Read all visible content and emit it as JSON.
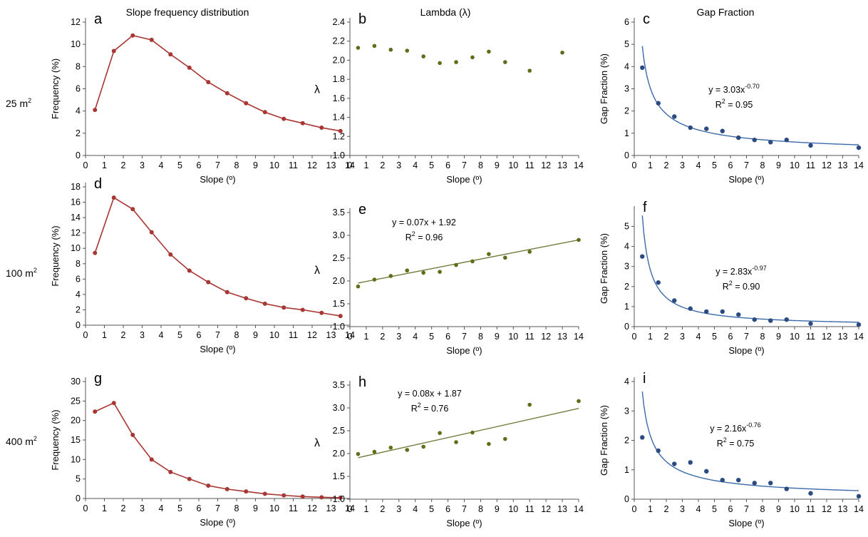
{
  "row_labels": [
    {
      "main": "25 m",
      "sup": "2"
    },
    {
      "main": "100 m",
      "sup": "2"
    },
    {
      "main": "400 m",
      "sup": "2"
    }
  ],
  "colors": {
    "frequency": "#a83632",
    "lambda_points": "#5c6e18",
    "lambda_fit": "#6e7d3c",
    "gap_points": "#2a4a80",
    "gap_fit": "#3c6aa8"
  },
  "chart_data": [
    {
      "letter": "a",
      "type": "line",
      "title": "Slope frequency distribution",
      "xlabel": "Slope (º)",
      "ylabel": "Frequency (%)",
      "xlim": [
        0,
        14
      ],
      "ylim": [
        0,
        12
      ],
      "xticks": [
        0,
        1,
        2,
        3,
        4,
        5,
        6,
        7,
        8,
        9,
        10,
        11,
        12,
        13,
        14
      ],
      "yticks": [
        0,
        2,
        4,
        6,
        8,
        10,
        12
      ],
      "series": [
        {
          "x": [
            0.5,
            1.5,
            2.5,
            3.5,
            4.5,
            5.5,
            6.5,
            7.5,
            8.5,
            9.5,
            10.5,
            11.5,
            12.5,
            13.5
          ],
          "y": [
            4.1,
            9.4,
            10.8,
            10.4,
            9.1,
            7.9,
            6.6,
            5.6,
            4.7,
            3.9,
            3.3,
            2.9,
            2.5,
            2.2
          ]
        }
      ]
    },
    {
      "letter": "b",
      "type": "scatter",
      "title": "Lambda (λ)",
      "xlabel": "Slope (º)",
      "ylabel": "λ",
      "xlim": [
        0,
        14
      ],
      "ylim": [
        1.0,
        2.4
      ],
      "xticks": [
        0,
        1,
        2,
        3,
        4,
        5,
        6,
        7,
        8,
        9,
        10,
        11,
        12,
        13,
        14
      ],
      "yticks": [
        "1.0",
        "1.2",
        "1.4",
        "1.6",
        "1.8",
        "2.0",
        "2.2",
        "2.4"
      ],
      "series": [
        {
          "x": [
            0.5,
            1.5,
            2.5,
            3.5,
            4.5,
            5.5,
            6.5,
            7.5,
            8.5,
            9.5,
            11,
            13
          ],
          "y": [
            2.13,
            2.15,
            2.11,
            2.1,
            2.04,
            1.97,
            1.98,
            2.03,
            2.09,
            1.98,
            1.89,
            2.08
          ]
        }
      ]
    },
    {
      "letter": "c",
      "type": "scatter",
      "title": "Gap Fraction",
      "xlabel": "Slope (º)",
      "ylabel": "Gap Fraction (%)",
      "xlim": [
        0,
        14
      ],
      "ylim": [
        0,
        6
      ],
      "xticks": [
        0,
        1,
        2,
        3,
        4,
        5,
        6,
        7,
        8,
        9,
        10,
        11,
        12,
        13,
        14
      ],
      "yticks": [
        0,
        1,
        2,
        3,
        4,
        5,
        6
      ],
      "series": [
        {
          "x": [
            0.5,
            1.5,
            2.5,
            3.5,
            4.5,
            5.5,
            6.5,
            7.5,
            8.5,
            9.5,
            11,
            14
          ],
          "y": [
            3.95,
            2.35,
            1.75,
            1.25,
            1.2,
            1.1,
            0.8,
            0.7,
            0.6,
            0.7,
            0.45,
            0.35
          ]
        }
      ],
      "fit": {
        "kind": "power",
        "a": 3.03,
        "b": -0.7
      },
      "equation": {
        "line1": "y = 3.03x",
        "sup": "-0.70",
        "line2_pre": "R",
        "line2_sup": "2",
        "line2_post": " = 0.95"
      }
    },
    {
      "letter": "d",
      "type": "line",
      "title": "",
      "xlabel": "Slope (º)",
      "ylabel": "Frequency (%)",
      "xlim": [
        0,
        14
      ],
      "ylim": [
        0,
        18
      ],
      "xticks": [
        0,
        1,
        2,
        3,
        4,
        5,
        6,
        7,
        8,
        9,
        10,
        11,
        12,
        13,
        14
      ],
      "yticks": [
        0,
        2,
        4,
        6,
        8,
        10,
        12,
        14,
        16,
        18
      ],
      "series": [
        {
          "x": [
            0.5,
            1.5,
            2.5,
            3.5,
            4.5,
            5.5,
            6.5,
            7.5,
            8.5,
            9.5,
            10.5,
            11.5,
            12.5,
            13.5
          ],
          "y": [
            9.4,
            16.6,
            15.1,
            12.1,
            9.2,
            7.1,
            5.6,
            4.3,
            3.5,
            2.8,
            2.3,
            2.0,
            1.6,
            1.2
          ]
        }
      ]
    },
    {
      "letter": "e",
      "type": "scatter",
      "title": "",
      "xlabel": "Slope (º)",
      "ylabel": "λ",
      "xlim": [
        0,
        14
      ],
      "ylim": [
        1.0,
        3.5
      ],
      "xticks": [
        0,
        1,
        2,
        3,
        4,
        5,
        6,
        7,
        8,
        9,
        10,
        11,
        12,
        13,
        14
      ],
      "yticks": [
        "1.0",
        "1.5",
        "2.0",
        "2.5",
        "3.0",
        "3.5"
      ],
      "series": [
        {
          "x": [
            0.5,
            1.5,
            2.5,
            3.5,
            4.5,
            5.5,
            6.5,
            7.5,
            8.5,
            9.5,
            11,
            14
          ],
          "y": [
            1.88,
            2.03,
            2.11,
            2.23,
            2.18,
            2.2,
            2.35,
            2.43,
            2.59,
            2.51,
            2.64,
            2.9
          ]
        }
      ],
      "fit": {
        "kind": "linear",
        "a": 0.07,
        "b": 1.92
      },
      "equation": {
        "line1": "y = 0.07x + 1.92",
        "sup": "",
        "line2_pre": "R",
        "line2_sup": "2",
        "line2_post": " = 0.96"
      }
    },
    {
      "letter": "f",
      "type": "scatter",
      "title": "",
      "xlabel": "Slope (º)",
      "ylabel": "Gap Fraction (%)",
      "xlim": [
        0,
        14
      ],
      "ylim": [
        0,
        5.8
      ],
      "xticks": [
        0,
        1,
        2,
        3,
        4,
        5,
        6,
        7,
        8,
        9,
        10,
        11,
        12,
        13,
        14
      ],
      "yticks": [
        0,
        1,
        2,
        3,
        4,
        5
      ],
      "series": [
        {
          "x": [
            0.5,
            1.5,
            2.5,
            3.5,
            4.5,
            5.5,
            6.5,
            7.5,
            8.5,
            9.5,
            11,
            14
          ],
          "y": [
            3.5,
            2.2,
            1.3,
            0.9,
            0.75,
            0.75,
            0.6,
            0.35,
            0.3,
            0.35,
            0.15,
            0.1
          ]
        }
      ],
      "fit": {
        "kind": "power",
        "a": 2.83,
        "b": -0.97
      },
      "equation": {
        "line1": "y = 2.83x",
        "sup": "-0.97",
        "line2_pre": "R",
        "line2_sup": "2",
        "line2_post": " = 0.90"
      }
    },
    {
      "letter": "g",
      "type": "line",
      "title": "",
      "xlabel": "Slope (º)",
      "ylabel": "Frequency (%)",
      "xlim": [
        0,
        14
      ],
      "ylim": [
        0,
        30
      ],
      "xticks": [
        0,
        1,
        2,
        3,
        4,
        5,
        6,
        7,
        8,
        9,
        10,
        11,
        12,
        13,
        14
      ],
      "yticks": [
        0,
        5,
        10,
        15,
        20,
        25,
        30
      ],
      "series": [
        {
          "x": [
            0.5,
            1.5,
            2.5,
            3.5,
            4.5,
            5.5,
            6.5,
            7.5,
            8.5,
            9.5,
            10.5,
            11.5,
            12.5,
            13.5
          ],
          "y": [
            22.3,
            24.5,
            16.3,
            10.0,
            6.8,
            5.0,
            3.3,
            2.4,
            1.8,
            1.2,
            0.8,
            0.5,
            0.3,
            0.2
          ]
        }
      ]
    },
    {
      "letter": "h",
      "type": "scatter",
      "title": "",
      "xlabel": "Slope (º)",
      "ylabel": "λ",
      "xlim": [
        0,
        14
      ],
      "ylim": [
        1.0,
        3.5
      ],
      "xticks": [
        0,
        1,
        2,
        3,
        4,
        5,
        6,
        7,
        8,
        9,
        10,
        11,
        12,
        13,
        14
      ],
      "yticks": [
        "1.0",
        "1.5",
        "2.0",
        "2.5",
        "3.0",
        "3.5"
      ],
      "series": [
        {
          "x": [
            0.5,
            1.5,
            2.5,
            3.5,
            4.5,
            5.5,
            6.5,
            7.5,
            8.5,
            9.5,
            11,
            14
          ],
          "y": [
            1.99,
            2.04,
            2.13,
            2.08,
            2.15,
            2.45,
            2.25,
            2.46,
            2.21,
            2.32,
            3.07,
            3.15
          ]
        }
      ],
      "fit": {
        "kind": "linear",
        "a": 0.08,
        "b": 1.87
      },
      "equation": {
        "line1": "y = 0.08x + 1.87",
        "sup": "",
        "line2_pre": "R",
        "line2_sup": "2",
        "line2_post": " = 0.76"
      }
    },
    {
      "letter": "i",
      "type": "scatter",
      "title": "",
      "xlabel": "Slope (º)",
      "ylabel": "Gap Fraction (%)",
      "xlim": [
        0,
        14
      ],
      "ylim": [
        0,
        4
      ],
      "xticks": [
        0,
        1,
        2,
        3,
        4,
        5,
        6,
        7,
        8,
        9,
        10,
        11,
        12,
        13,
        14
      ],
      "yticks": [
        0,
        1,
        2,
        3,
        4
      ],
      "series": [
        {
          "x": [
            0.5,
            1.5,
            2.5,
            3.5,
            4.5,
            5.5,
            6.5,
            7.5,
            8.5,
            9.5,
            11,
            14
          ],
          "y": [
            2.1,
            1.65,
            1.2,
            1.25,
            0.95,
            0.65,
            0.65,
            0.55,
            0.55,
            0.35,
            0.2,
            0.1
          ]
        }
      ],
      "fit": {
        "kind": "power",
        "a": 2.16,
        "b": -0.76
      },
      "equation": {
        "line1": "y = 2.16x",
        "sup": "-0.76",
        "line2_pre": "R",
        "line2_sup": "2",
        "line2_post": " = 0.75"
      }
    }
  ]
}
